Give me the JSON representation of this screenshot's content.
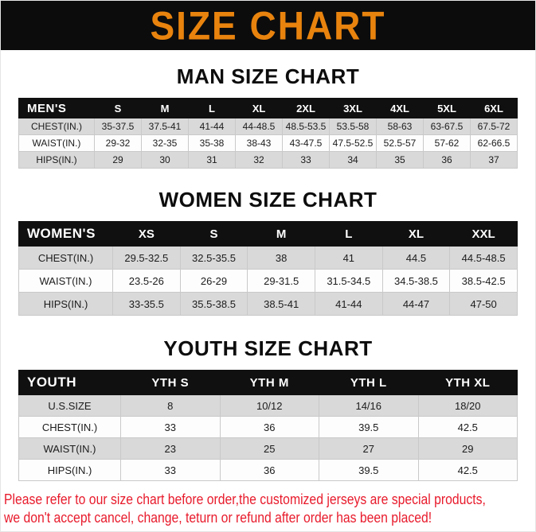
{
  "banner": {
    "title": "SIZE CHART",
    "bg_color": "#0c0c0c",
    "text_color": "#e8830e"
  },
  "sections": [
    {
      "heading": "MAN SIZE CHART",
      "table": {
        "header": [
          "MEN'S",
          "S",
          "M",
          "L",
          "XL",
          "2XL",
          "3XL",
          "4XL",
          "5XL",
          "6XL"
        ],
        "rows": [
          {
            "label": "CHEST(IN.)",
            "values": [
              "35-37.5",
              "37.5-41",
              "41-44",
              "44-48.5",
              "48.5-53.5",
              "53.5-58",
              "58-63",
              "63-67.5",
              "67.5-72"
            ]
          },
          {
            "label": "WAIST(IN.)",
            "values": [
              "29-32",
              "32-35",
              "35-38",
              "38-43",
              "43-47.5",
              "47.5-52.5",
              "52.5-57",
              "57-62",
              "62-66.5"
            ]
          },
          {
            "label": "HIPS(IN.)",
            "values": [
              "29",
              "30",
              "31",
              "32",
              "33",
              "34",
              "35",
              "36",
              "37"
            ]
          }
        ]
      }
    },
    {
      "heading": "WOMEN SIZE CHART",
      "table": {
        "header": [
          "WOMEN'S",
          "XS",
          "S",
          "M",
          "L",
          "XL",
          "XXL"
        ],
        "rows": [
          {
            "label": "CHEST(IN.)",
            "values": [
              "29.5-32.5",
              "32.5-35.5",
              "38",
              "41",
              "44.5",
              "44.5-48.5"
            ]
          },
          {
            "label": "WAIST(IN.)",
            "values": [
              "23.5-26",
              "26-29",
              "29-31.5",
              "31.5-34.5",
              "34.5-38.5",
              "38.5-42.5"
            ]
          },
          {
            "label": "HIPS(IN.)",
            "values": [
              "33-35.5",
              "35.5-38.5",
              "38.5-41",
              "41-44",
              "44-47",
              "47-50"
            ]
          }
        ]
      }
    },
    {
      "heading": "YOUTH SIZE CHART",
      "table": {
        "header": [
          "YOUTH",
          "YTH S",
          "YTH M",
          "YTH L",
          "YTH XL"
        ],
        "rows": [
          {
            "label": "U.S.SIZE",
            "values": [
              "8",
              "10/12",
              "14/16",
              "18/20"
            ]
          },
          {
            "label": "CHEST(IN.)",
            "values": [
              "33",
              "36",
              "39.5",
              "42.5"
            ]
          },
          {
            "label": "WAIST(IN.)",
            "values": [
              "23",
              "25",
              "27",
              "29"
            ]
          },
          {
            "label": "HIPS(IN.)",
            "values": [
              "33",
              "36",
              "39.5",
              "42.5"
            ]
          }
        ]
      }
    }
  ],
  "footer": {
    "line1": "Please refer to our size chart before order,the customized jerseys are special products,",
    "line2": "we don't accept cancel, change, teturn or refund after order has been placed!",
    "text_color": "#e81b2c"
  },
  "theme": {
    "header_row_bg": "#101010",
    "stripe_gray": "#d9d9d9",
    "stripe_white": "#fdfdfd"
  }
}
